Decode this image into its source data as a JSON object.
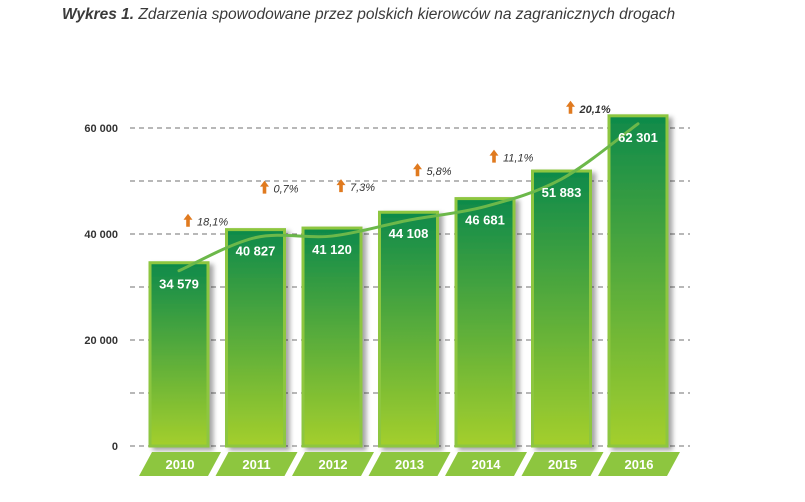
{
  "header": {
    "figure_label": "Wykres 1.",
    "title": "Zdarzenia spowodowane przez polskich kierowców na zagranicznych drogach"
  },
  "colors": {
    "bar_top": "#0e8a4a",
    "bar_bottom": "#a4cf2c",
    "bar_border": "#8dc63f",
    "trend": "#6cb84a",
    "arrow": "#e07a1f",
    "axis_band": "#8dc63f",
    "grid": "#444444"
  },
  "chart_data": {
    "type": "bar",
    "title": "Zdarzenia spowodowane przez polskich kierowców na zagranicznych drogach",
    "categories": [
      "2010",
      "2011",
      "2012",
      "2013",
      "2014",
      "2015",
      "2016"
    ],
    "values": [
      34579,
      40827,
      41120,
      44108,
      46681,
      51883,
      62301
    ],
    "value_labels": [
      "34 579",
      "40 827",
      "41 120",
      "44 108",
      "46 681",
      "51 883",
      "62 301"
    ],
    "growth_labels": [
      "18,1%",
      "0,7%",
      "7,3%",
      "5,8%",
      "11,1%",
      "20,1%",
      ""
    ],
    "growth_arrow_icon": "arrow-up-icon",
    "yticks": [
      0,
      20000,
      40000,
      60000
    ],
    "ytick_labels": [
      "0",
      "20 000",
      "40 000",
      "60 000"
    ],
    "ylim": [
      0,
      60000
    ],
    "grid": true,
    "trendline": true,
    "xlabel": "",
    "ylabel": ""
  }
}
